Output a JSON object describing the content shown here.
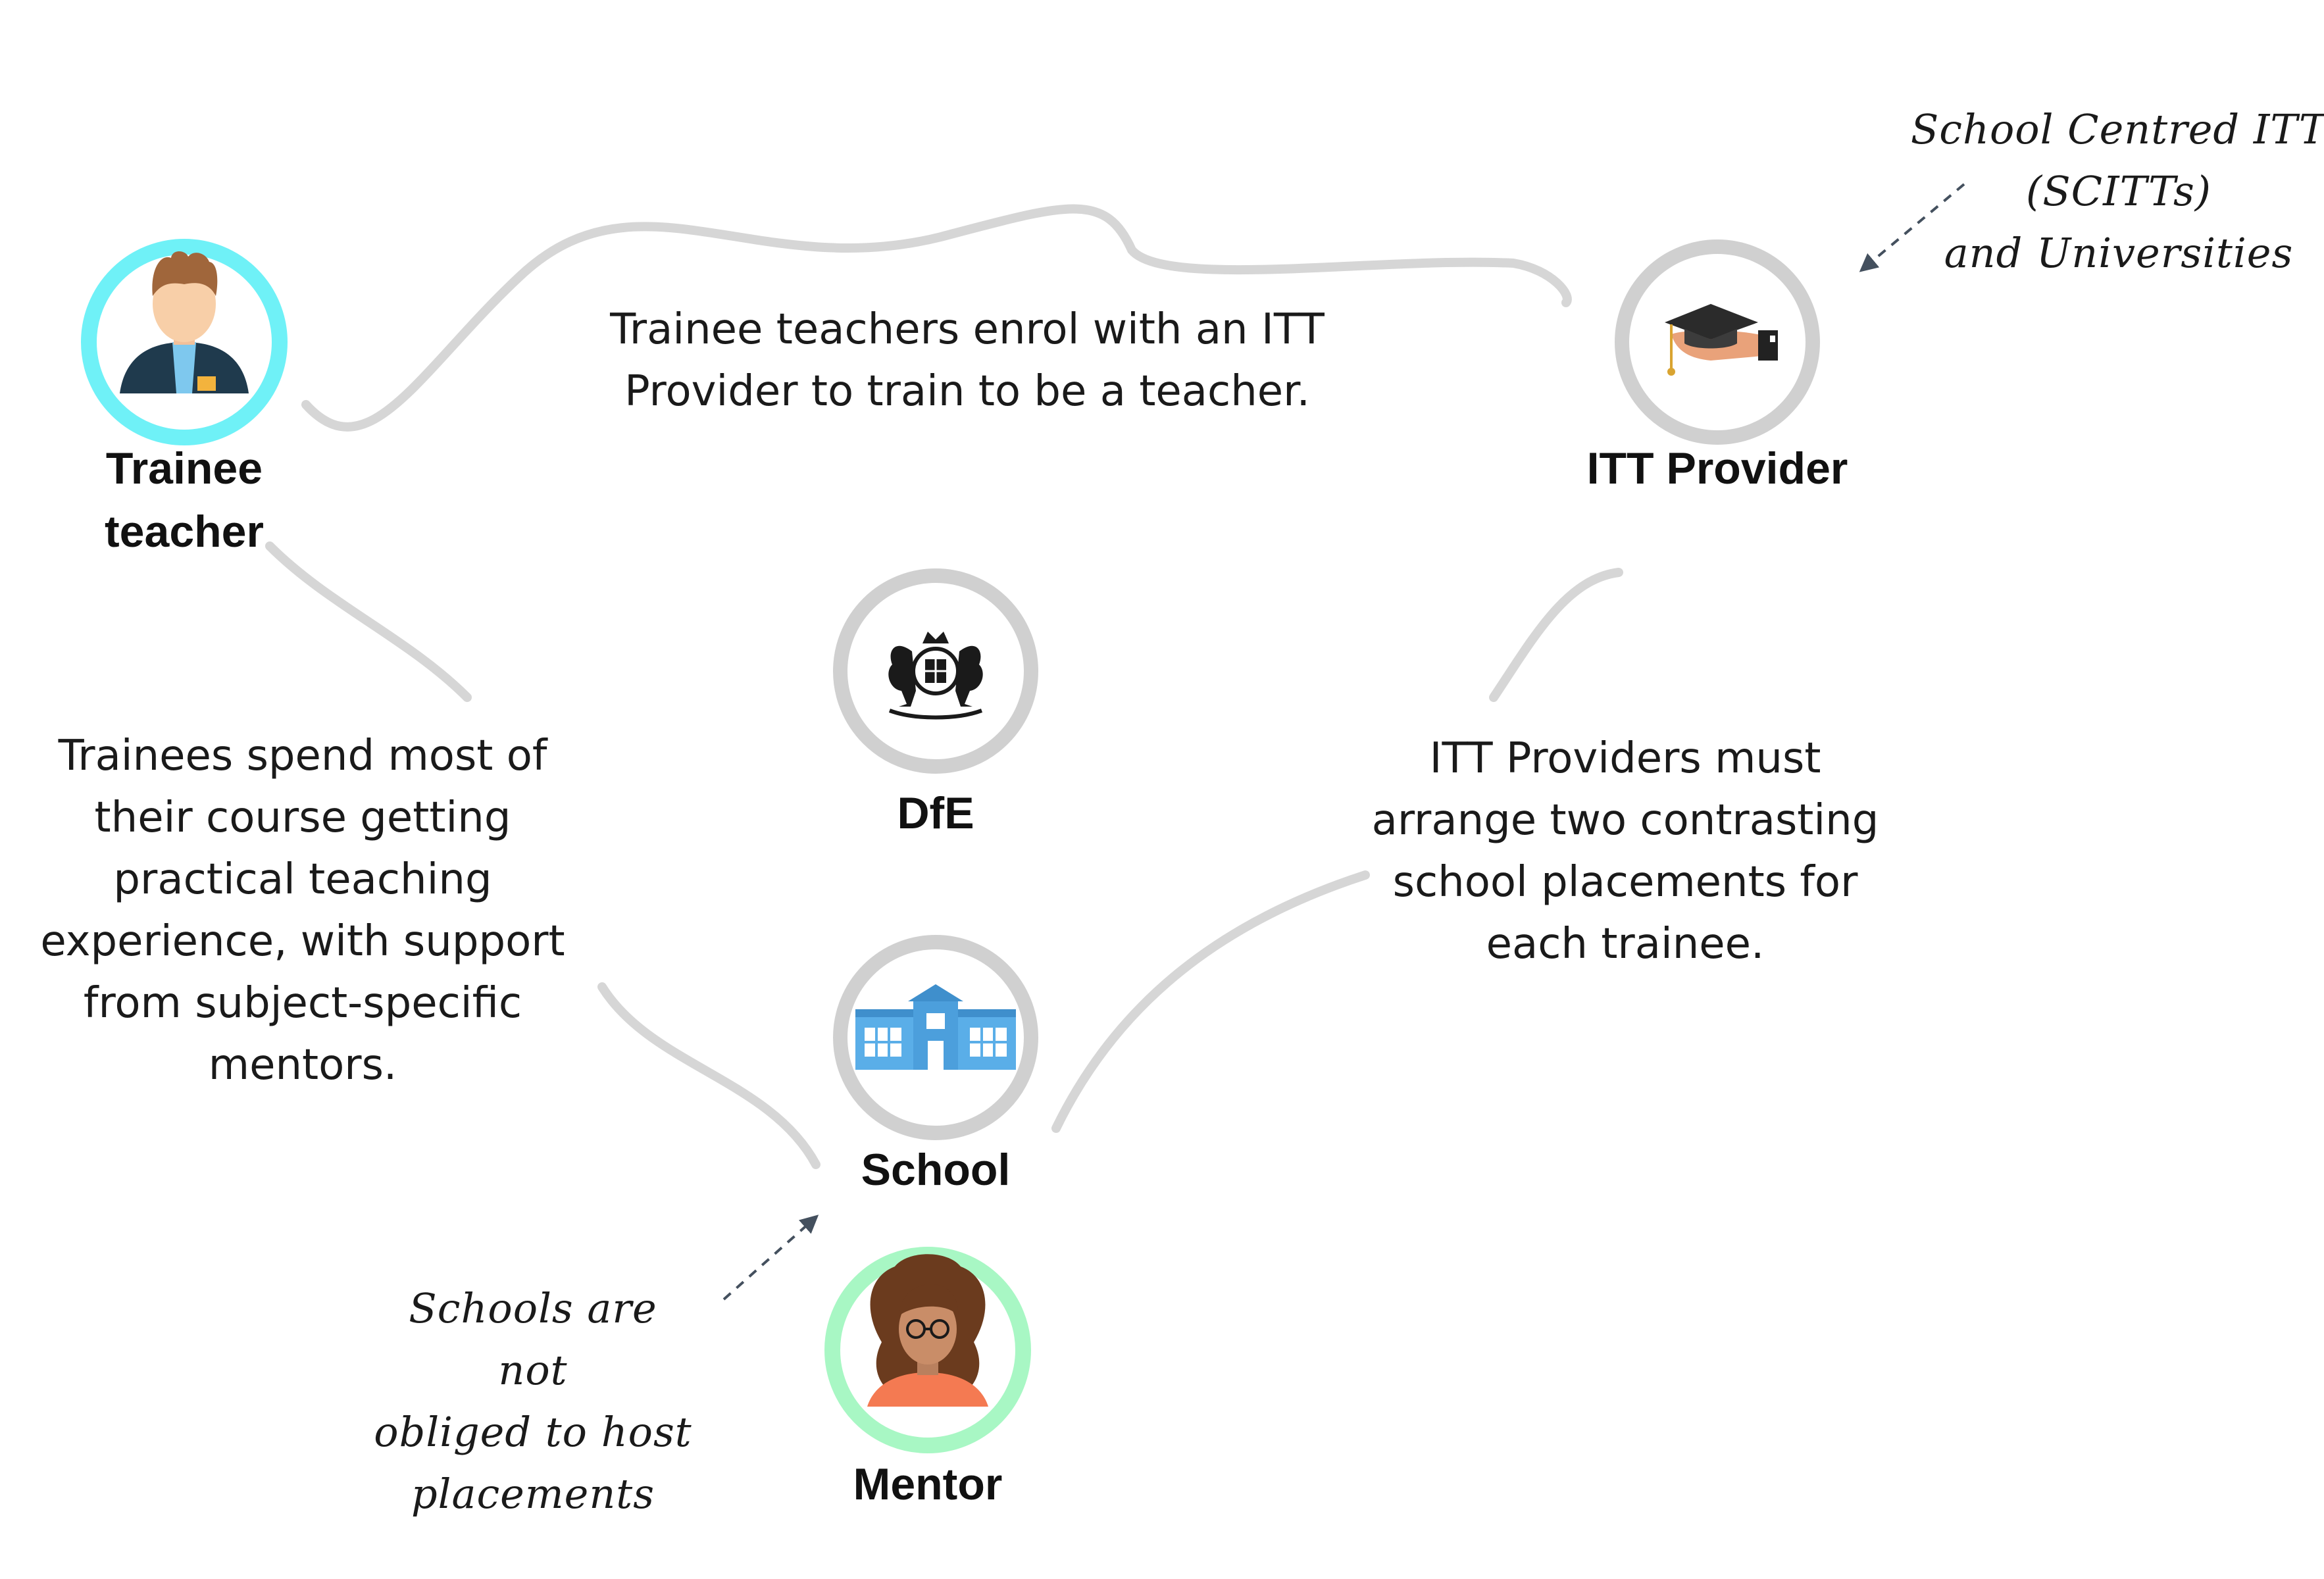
{
  "nodes": {
    "trainee": {
      "label_line1": "Trainee",
      "label_line2": "teacher",
      "ring_color": "#6ff1f7",
      "icon": "trainee-teacher-icon"
    },
    "itt_provider": {
      "label": "ITT Provider",
      "ring_color": "#d0d0d0",
      "icon": "graduation-cap-hand-icon"
    },
    "dfe": {
      "label": "DfE",
      "ring_color": "#d0d0d0",
      "icon": "royal-coat-of-arms-icon"
    },
    "school": {
      "label": "School",
      "ring_color": "#d0d0d0",
      "icon": "school-building-icon"
    },
    "mentor": {
      "label": "Mentor",
      "ring_color": "#a8f7c4",
      "icon": "mentor-woman-icon"
    }
  },
  "descriptions": {
    "trainee_to_provider": {
      "line1": "Trainee teachers enrol with an ITT",
      "line2": "Provider to train to be a teacher."
    },
    "trainee_to_school": {
      "line1": "Trainees spend most of",
      "line2": "their course getting",
      "line3": "practical teaching",
      "line4": "experience, with support",
      "line5": "from subject-specific",
      "line6": "mentors."
    },
    "provider_to_school": {
      "line1": "ITT Providers must",
      "line2": "arrange two contrasting",
      "line3": "school placements for",
      "line4": "each trainee."
    }
  },
  "annotations": {
    "provider_note": {
      "line1": "School Centred ITT",
      "line2": "(SCITTs)",
      "line3": "and Universities"
    },
    "school_note": {
      "line1": "Schools are not",
      "line2": "obliged to host",
      "line3": "placements"
    }
  },
  "colors": {
    "connector": "#d6d6d6",
    "arrow": "#44505e",
    "school_blue": "#5aaee8"
  }
}
